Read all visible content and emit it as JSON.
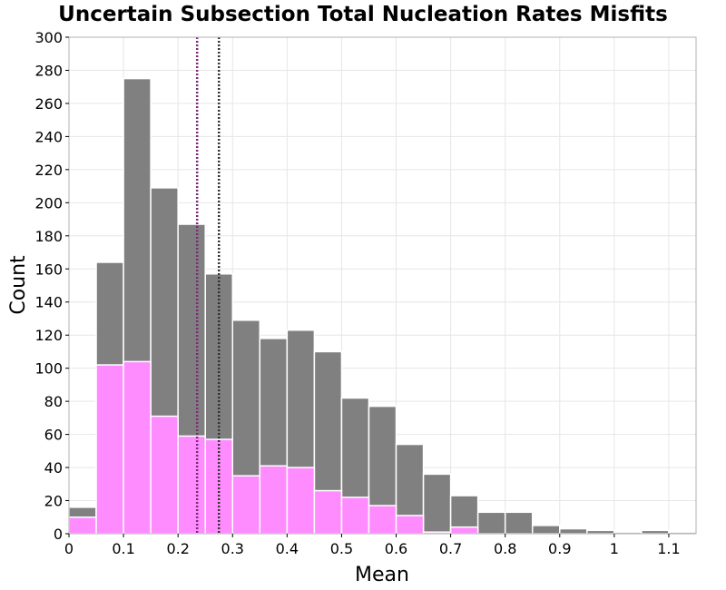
{
  "chart_data": {
    "type": "bar",
    "title": "Uncertain Subsection Total Nucleation Rates Misfits",
    "xlabel": "Mean",
    "ylabel": "Count",
    "xlim": [
      0,
      1.15
    ],
    "ylim": [
      0,
      300
    ],
    "grid": true,
    "bin_width": 0.05,
    "bin_starts": [
      0,
      0.05,
      0.1,
      0.15,
      0.2,
      0.25,
      0.3,
      0.35,
      0.4,
      0.45,
      0.5,
      0.55,
      0.6,
      0.65,
      0.7,
      0.75,
      0.8,
      0.85,
      0.9,
      0.95,
      1.0,
      1.05,
      1.1
    ],
    "x_ticks": [
      0,
      0.1,
      0.2,
      0.3,
      0.4,
      0.5,
      0.6,
      0.7,
      0.8,
      0.9,
      1,
      1.1
    ],
    "x_tick_labels": [
      "0",
      "0.1",
      "0.2",
      "0.3",
      "0.4",
      "0.5",
      "0.6",
      "0.7",
      "0.8",
      "0.9",
      "1",
      "1.1"
    ],
    "y_ticks": [
      0,
      20,
      40,
      60,
      80,
      100,
      120,
      140,
      160,
      180,
      200,
      220,
      240,
      260,
      280,
      300
    ],
    "y_tick_labels": [
      "0",
      "20",
      "40",
      "60",
      "80",
      "100",
      "120",
      "140",
      "160",
      "180",
      "200",
      "220",
      "240",
      "260",
      "280",
      "300"
    ],
    "series": [
      {
        "color": "#808080",
        "values": [
          16,
          164,
          275,
          209,
          187,
          157,
          129,
          118,
          123,
          110,
          82,
          77,
          54,
          36,
          23,
          13,
          13,
          5,
          3,
          2,
          1,
          2,
          1
        ]
      },
      {
        "color": "#ff8cff",
        "values": [
          10,
          102,
          104,
          71,
          59,
          57,
          35,
          41,
          40,
          26,
          22,
          17,
          11,
          1,
          4,
          0,
          0,
          0,
          0,
          0,
          0,
          0,
          0
        ]
      }
    ],
    "markers": [
      {
        "x": 0.235,
        "color": "#7a2a7a"
      },
      {
        "x": 0.275,
        "color": "#333333"
      }
    ]
  }
}
